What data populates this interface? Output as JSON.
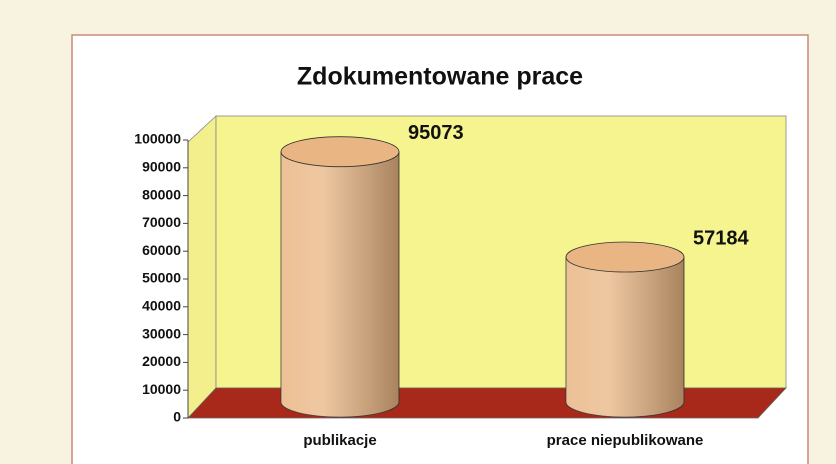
{
  "chart_data": {
    "type": "cylinder",
    "title": "Zdokumentowane prace",
    "categories": [
      "publikacje",
      "prace niepublikowane"
    ],
    "values": [
      95073,
      57184
    ],
    "color": "#e9b582",
    "ylim": [
      0,
      100000
    ],
    "yticks": [
      0,
      10000,
      20000,
      30000,
      40000,
      50000,
      60000,
      70000,
      80000,
      90000,
      100000
    ]
  }
}
